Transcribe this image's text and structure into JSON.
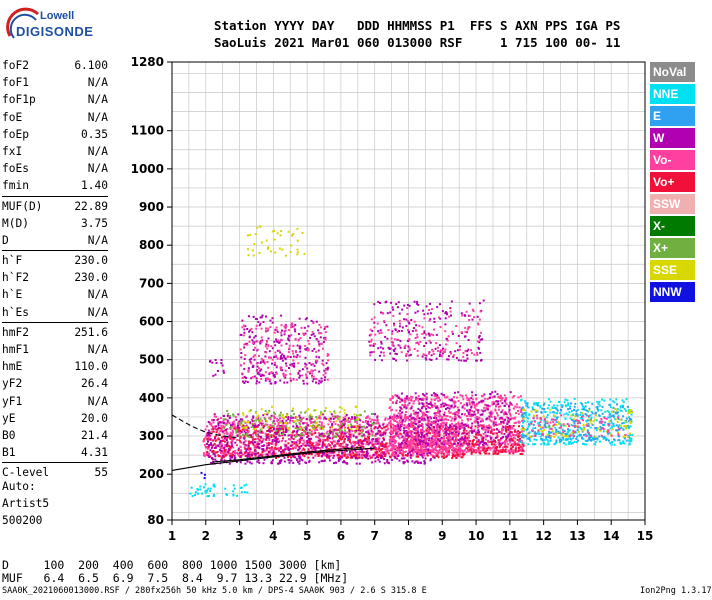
{
  "logo": {
    "line1": "Lowell",
    "line2": "DIGISONDE"
  },
  "header": {
    "line1": "Station YYYY DAY   DDD HHMMSS P1  FFS S AXN PPS IGA PS",
    "line2": "SaoLuis 2021 Mar01 060 013000 RSF     1 715 100 00- 11"
  },
  "params": [
    {
      "name": "foF2",
      "value": "6.100"
    },
    {
      "name": "foF1",
      "value": "N/A"
    },
    {
      "name": "foF1p",
      "value": "N/A"
    },
    {
      "name": "foE",
      "value": "N/A"
    },
    {
      "name": "foEp",
      "value": "0.35"
    },
    {
      "name": "fxI",
      "value": "N/A"
    },
    {
      "name": "foEs",
      "value": "N/A"
    },
    {
      "name": "fmin",
      "value": "1.40"
    },
    {
      "sep": true
    },
    {
      "name": "MUF(D)",
      "value": "22.89"
    },
    {
      "name": "M(D)",
      "value": "3.75"
    },
    {
      "name": "D",
      "value": "N/A"
    },
    {
      "sep": true
    },
    {
      "name": "h`F",
      "value": "230.0"
    },
    {
      "name": "h`F2",
      "value": "230.0"
    },
    {
      "name": "h`E",
      "value": "N/A"
    },
    {
      "name": "h`Es",
      "value": "N/A"
    },
    {
      "sep": true
    },
    {
      "name": "hmF2",
      "value": "251.6"
    },
    {
      "name": "hmF1",
      "value": "N/A"
    },
    {
      "name": "hmE",
      "value": "110.0"
    },
    {
      "name": "yF2",
      "value": "26.4"
    },
    {
      "name": "yF1",
      "value": "N/A"
    },
    {
      "name": "yE",
      "value": "20.0"
    },
    {
      "name": "B0",
      "value": "21.4"
    },
    {
      "name": "B1",
      "value": "4.31"
    },
    {
      "sep": true
    },
    {
      "name": "C-level",
      "value": "55"
    }
  ],
  "auto": {
    "line1": "Auto:",
    "line2": "Artist5",
    "line3": "500200"
  },
  "legend": [
    {
      "label": "NoVal",
      "color": "#8c8c8c"
    },
    {
      "label": "NNE",
      "color": "#00e0f0"
    },
    {
      "label": "E",
      "color": "#30a0f0"
    },
    {
      "label": "W",
      "color": "#b000b0"
    },
    {
      "label": "Vo-",
      "color": "#ff40a0"
    },
    {
      "label": "Vo+",
      "color": "#f0103a"
    },
    {
      "label": "SSW",
      "color": "#f0b0b0"
    },
    {
      "label": "X-",
      "color": "#007a00"
    },
    {
      "label": "X+",
      "color": "#70b040"
    },
    {
      "label": "SSE",
      "color": "#d8d800"
    },
    {
      "label": "NNW",
      "color": "#1010e0"
    }
  ],
  "footer": {
    "line1": "D     100  200  400  600  800 1000 1500 3000 [km]",
    "line2": "MUF   6.4  6.5  6.9  7.5  8.4  9.7 13.3 22.9 [MHz]",
    "bottom_left": "SAA0K_2021060013000.RSF / 280fx256h 50 kHz 5.0 km / DPS-4 SAA0K 903 / 2.6 S 315.8 E",
    "bottom_right": "Ion2Png 1.3.17"
  },
  "chart_data": {
    "type": "scatter",
    "xlim": [
      1,
      15
    ],
    "ylim": [
      80,
      1280
    ],
    "x_ticks": [
      1,
      2,
      3,
      4,
      5,
      6,
      7,
      8,
      9,
      10,
      11,
      12,
      13,
      14,
      15
    ],
    "y_ticks": [
      80,
      200,
      300,
      400,
      500,
      600,
      700,
      800,
      900,
      1000,
      1100,
      1280
    ],
    "grid": true,
    "clusters": [
      {
        "trace": "Vo-",
        "x": [
          1.9,
          9.6
        ],
        "h": [
          250,
          355
        ],
        "density": 2.2
      },
      {
        "trace": "Vo+",
        "x": [
          2.0,
          9.6
        ],
        "h": [
          245,
          330
        ],
        "density": 1.2
      },
      {
        "trace": "W",
        "x": [
          2.0,
          8.8
        ],
        "h": [
          230,
          360
        ],
        "density": 1.0
      },
      {
        "trace": "Vo-",
        "x": [
          7.4,
          11.4
        ],
        "h": [
          260,
          410
        ],
        "density": 2.4
      },
      {
        "trace": "Vo+",
        "x": [
          9.6,
          11.4
        ],
        "h": [
          255,
          330
        ],
        "density": 1.4
      },
      {
        "trace": "W",
        "x": [
          7.6,
          11.0
        ],
        "h": [
          280,
          420
        ],
        "density": 0.9
      },
      {
        "trace": "X+",
        "x": [
          2.5,
          7.0
        ],
        "h": [
          300,
          370
        ],
        "density": 0.6
      },
      {
        "trace": "SSE",
        "x": [
          3.0,
          6.5
        ],
        "h": [
          320,
          380
        ],
        "density": 0.5
      },
      {
        "trace": "NNE",
        "x": [
          11.3,
          14.6
        ],
        "h": [
          280,
          400
        ],
        "density": 1.2
      },
      {
        "trace": "E",
        "x": [
          11.3,
          14.6
        ],
        "h": [
          290,
          390
        ],
        "density": 0.9
      },
      {
        "trace": "SSE",
        "x": [
          11.3,
          14.6
        ],
        "h": [
          300,
          380
        ],
        "density": 0.5
      },
      {
        "trace": "Vo-",
        "x": [
          11.6,
          14.4
        ],
        "h": [
          300,
          360
        ],
        "density": 0.6
      },
      {
        "trace": "W",
        "x": [
          3.0,
          5.6
        ],
        "h": [
          440,
          620
        ],
        "density": 0.8
      },
      {
        "trace": "Vo-",
        "x": [
          3.0,
          5.6
        ],
        "h": [
          450,
          600
        ],
        "density": 0.6
      },
      {
        "trace": "W",
        "x": [
          6.8,
          10.2
        ],
        "h": [
          500,
          660
        ],
        "density": 0.5
      },
      {
        "trace": "Vo-",
        "x": [
          6.8,
          10.2
        ],
        "h": [
          510,
          640
        ],
        "density": 0.4
      },
      {
        "trace": "SSE",
        "x": [
          3.2,
          4.9
        ],
        "h": [
          775,
          855
        ],
        "density": 0.4
      },
      {
        "trace": "NNE",
        "x": [
          1.5,
          3.3
        ],
        "h": [
          145,
          178
        ],
        "density": 1.0
      },
      {
        "trace": "NNW",
        "x": [
          1.8,
          2.0
        ],
        "h": [
          190,
          210
        ],
        "density": 1.0
      },
      {
        "trace": "W",
        "x": [
          2.0,
          2.6
        ],
        "h": [
          460,
          510
        ],
        "density": 0.6
      }
    ],
    "curves": [
      {
        "style": "solid",
        "points": [
          [
            1,
            210
          ],
          [
            2,
            225
          ],
          [
            3,
            235
          ],
          [
            4,
            245
          ],
          [
            5,
            255
          ],
          [
            6,
            262
          ],
          [
            7,
            268
          ]
        ]
      },
      {
        "style": "solid",
        "points": [
          [
            2.2,
            232
          ],
          [
            3,
            238
          ],
          [
            4,
            248
          ],
          [
            5,
            258
          ],
          [
            6,
            266
          ],
          [
            6.6,
            270
          ]
        ]
      },
      {
        "style": "dashed",
        "points": [
          [
            1,
            355
          ],
          [
            1.3,
            340
          ],
          [
            1.6,
            325
          ],
          [
            2,
            310
          ],
          [
            2.5,
            300
          ],
          [
            3,
            295
          ]
        ]
      }
    ]
  }
}
